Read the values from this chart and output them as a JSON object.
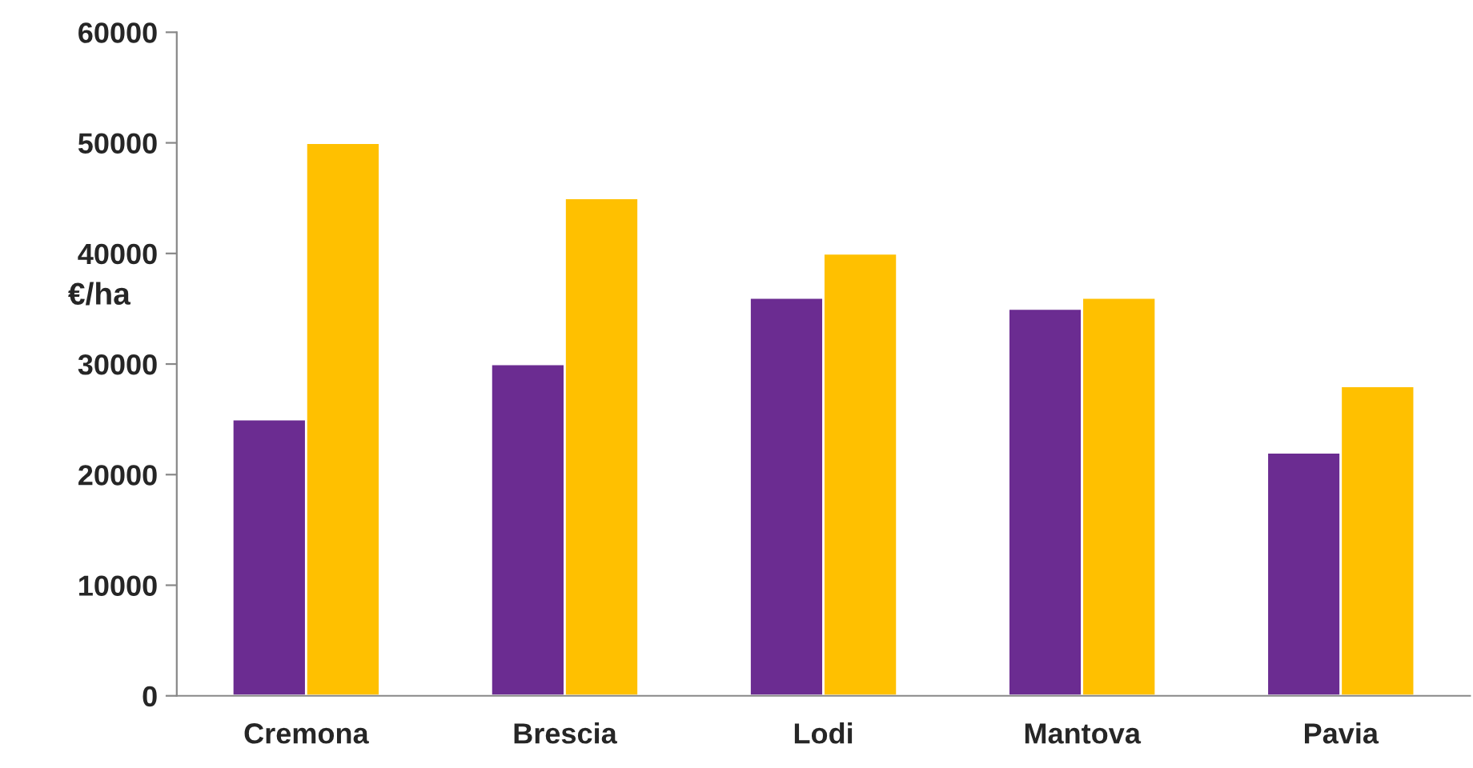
{
  "chart_data": {
    "type": "bar",
    "ylabel": "€/ha",
    "categories": [
      "Cremona",
      "Brescia",
      "Lodi",
      "Mantova",
      "Pavia"
    ],
    "series": [
      {
        "color": "#6b2c91",
        "values": [
          25000,
          30000,
          36000,
          35000,
          22000
        ]
      },
      {
        "color": "#ffc000",
        "values": [
          50000,
          45000,
          40000,
          36000,
          28000
        ]
      }
    ],
    "ylim": [
      0,
      60000
    ],
    "yticks": [
      0,
      10000,
      20000,
      30000,
      40000,
      50000,
      60000
    ],
    "grid": false,
    "legend": false
  }
}
